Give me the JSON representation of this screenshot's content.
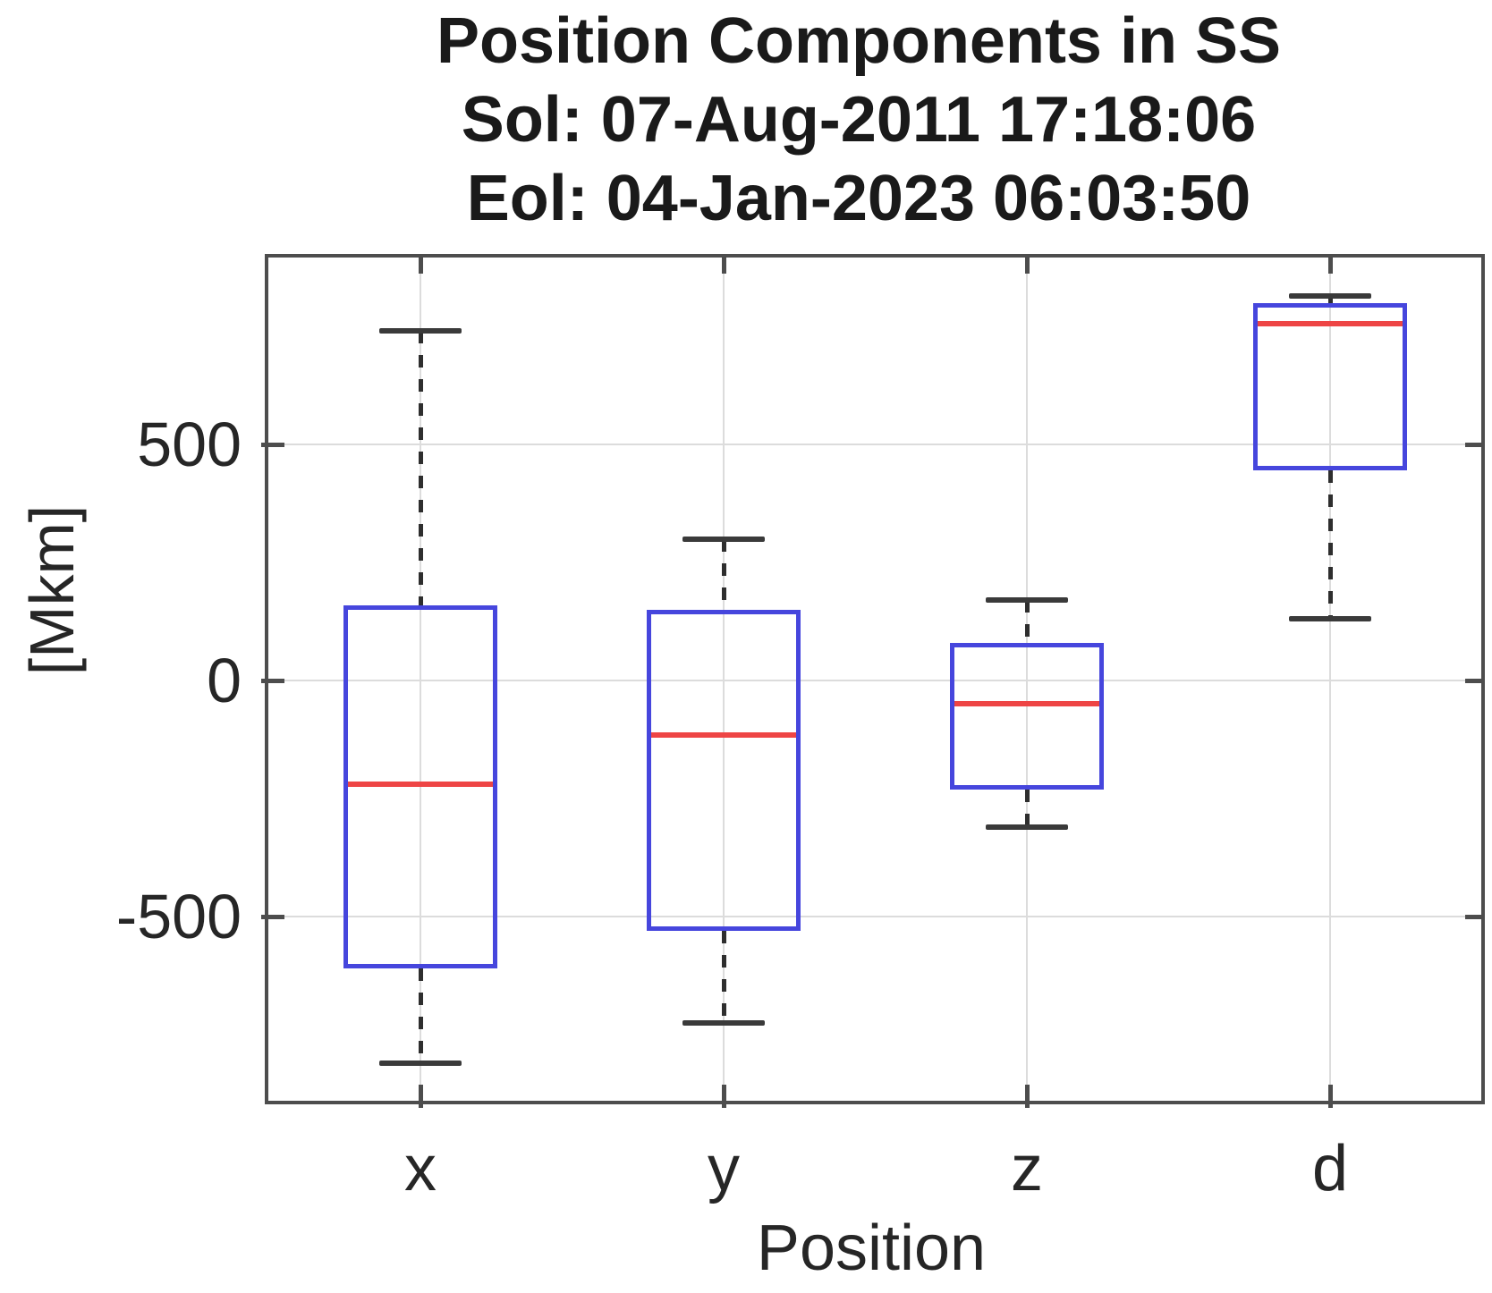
{
  "chart_data": {
    "type": "boxplot",
    "title_lines": [
      "Position Components in SS",
      "Sol: 07-Aug-2011 17:18:06",
      "Eol: 04-Jan-2023 06:03:50"
    ],
    "xlabel": "Position",
    "ylabel": "[Mkm]",
    "units": "Mkm",
    "categories": [
      "x",
      "y",
      "z",
      "d"
    ],
    "ytick_labels": [
      "500",
      "0",
      "-500"
    ],
    "ytick_values": [
      500,
      0,
      -500
    ],
    "ylim": [
      -890,
      896
    ],
    "grid": true,
    "legend": "none",
    "series": [
      {
        "category": "x",
        "whisker_low": -810,
        "q1": -610,
        "median": -220,
        "q3": 160,
        "whisker_high": 740
      },
      {
        "category": "y",
        "whisker_low": -725,
        "q1": -530,
        "median": -115,
        "q3": 150,
        "whisker_high": 300
      },
      {
        "category": "z",
        "whisker_low": -310,
        "q1": -230,
        "median": -50,
        "q3": 80,
        "whisker_high": 170
      },
      {
        "category": "d",
        "whisker_low": 130,
        "q1": 445,
        "median": 755,
        "q3": 800,
        "whisker_high": 815
      }
    ],
    "colors": {
      "box": "#4646dd",
      "median": "#ee4545",
      "whisker": "#2e2e2e",
      "cap": "#3a3a3a",
      "axis": "#4d4d4d",
      "grid": "#dcdcdc",
      "text": "#262626",
      "title": "#1a1a1a",
      "background": "#ffffff"
    }
  }
}
